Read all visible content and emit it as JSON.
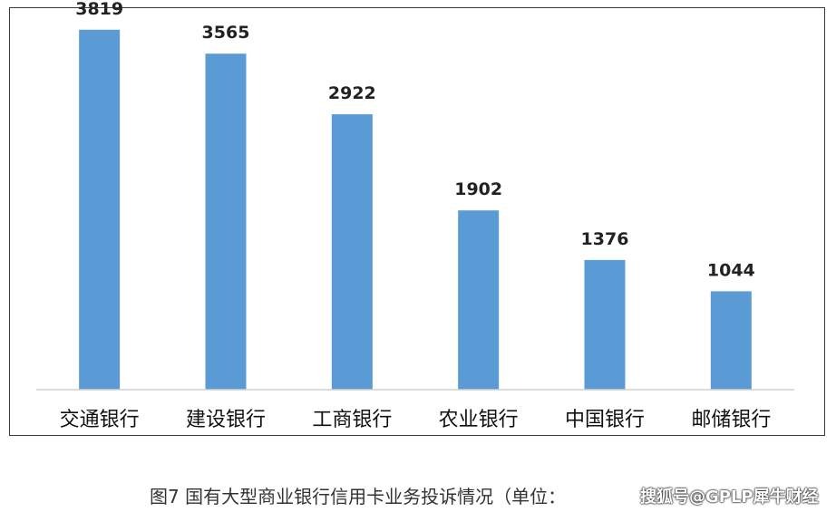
{
  "chart_data": {
    "type": "bar",
    "title": "",
    "categories": [
      "交通银行",
      "建设银行",
      "工商银行",
      "农业银行",
      "中国银行",
      "邮储银行"
    ],
    "values": [
      3819,
      3565,
      2922,
      1902,
      1376,
      1044
    ],
    "xlabel": "",
    "ylabel": "",
    "ylim": [
      0,
      4000
    ],
    "grid": false,
    "legend": "none",
    "bar_color": "#5b9bd5"
  },
  "caption": "图7  国有大型商业银行信用卡业务投诉情况（单位：",
  "watermark": "搜狐号@GPLP犀牛财经"
}
